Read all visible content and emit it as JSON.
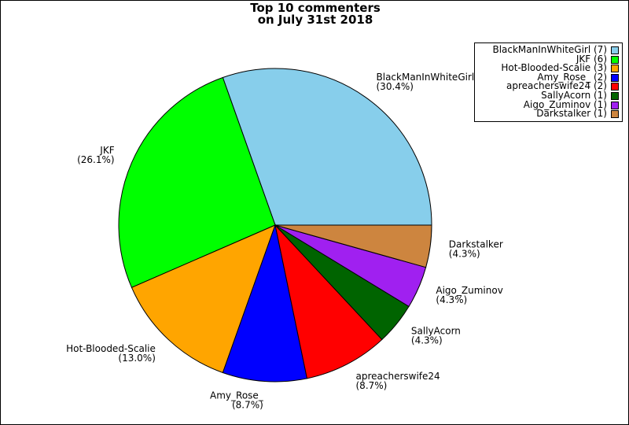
{
  "title": "Top 10 commenters\non July 31st 2018",
  "chart_data": {
    "type": "pie",
    "title": "Top 10 commenters\non July 31st 2018",
    "slices": [
      {
        "label": "BlackManInWhiteGirl",
        "count": 7,
        "percent": "30.4%",
        "color": "#87ceeb"
      },
      {
        "label": "JKF",
        "count": 6,
        "percent": "26.1%",
        "color": "#00ff00"
      },
      {
        "label": "Hot-Blooded-Scalie",
        "count": 3,
        "percent": "13.0%",
        "color": "#ffa500"
      },
      {
        "label": "Amy_Rose_",
        "count": 2,
        "percent": "8.7%",
        "color": "#0000ff"
      },
      {
        "label": "apreacherswife24",
        "count": 2,
        "percent": "8.7%",
        "color": "#ff0000"
      },
      {
        "label": "SallyAcorn",
        "count": 1,
        "percent": "4.3%",
        "color": "#006400"
      },
      {
        "label": "Aigo_Zuminov",
        "count": 1,
        "percent": "4.3%",
        "color": "#a020f0"
      },
      {
        "label": "Darkstalker",
        "count": 1,
        "percent": "4.3%",
        "color": "#cd853f"
      }
    ],
    "legend": [
      "BlackManInWhiteGirl (7)",
      "JKF (6)",
      "Hot-Blooded-Scalie (3)",
      "Amy_Rose_ (2)",
      "apreacherswife24 (2)",
      "SallyAcorn (1)",
      "Aigo_Zuminov (1)",
      "Darkstalker (1)"
    ],
    "legend_position": "top-right",
    "start_angle_deg": 0,
    "direction": "counterclockwise"
  }
}
